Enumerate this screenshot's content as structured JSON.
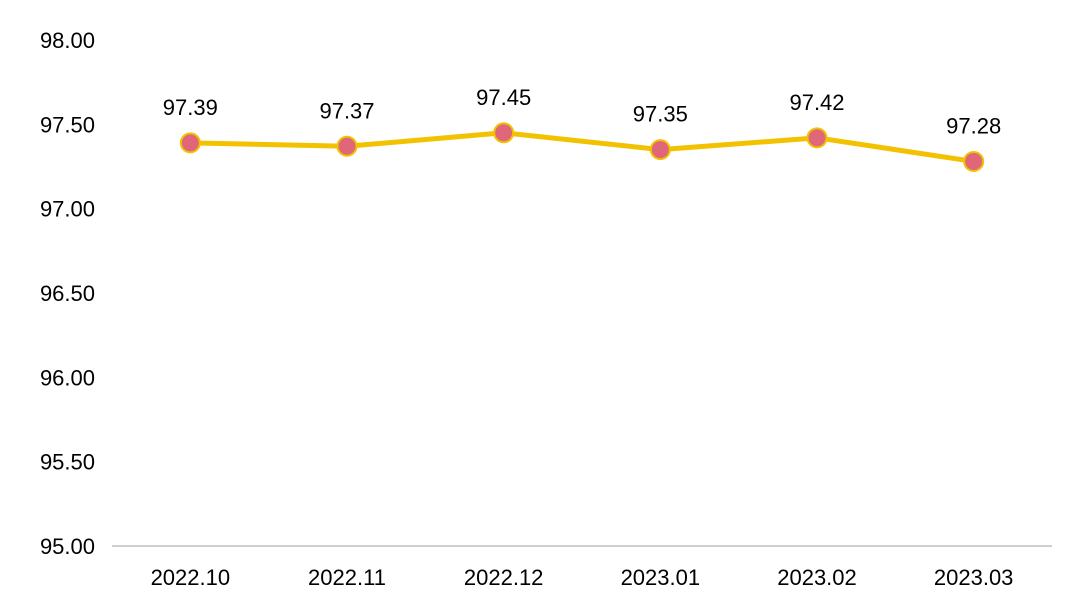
{
  "chart_data": {
    "type": "line",
    "title": "",
    "xlabel": "",
    "ylabel": "",
    "categories": [
      "2022.10",
      "2022.11",
      "2022.12",
      "2023.01",
      "2023.02",
      "2023.03"
    ],
    "series": [
      {
        "values": [
          97.39,
          97.37,
          97.45,
          97.35,
          97.42,
          97.28
        ]
      }
    ],
    "data_labels": [
      "97.39",
      "97.37",
      "97.45",
      "97.35",
      "97.42",
      "97.28"
    ],
    "ylim": [
      95.0,
      98.0
    ],
    "y_ticks": [
      "95.00",
      "95.50",
      "96.00",
      "96.50",
      "97.00",
      "97.50",
      "98.00"
    ],
    "grid": false,
    "legend": "none",
    "colors": {
      "line": "#F2C200",
      "marker_fill": "#E0667A",
      "marker_stroke": "#F2C200",
      "axis": "#BFBFBF"
    }
  }
}
